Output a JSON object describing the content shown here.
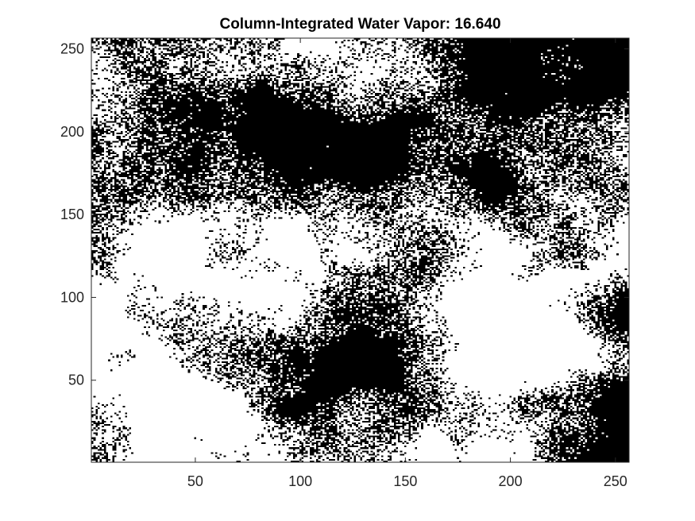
{
  "chart_data": {
    "type": "heatmap",
    "title": "Column-Integrated Water Vapor:  16.640",
    "xlabel": "",
    "ylabel": "",
    "xlim": [
      0.5,
      256.5
    ],
    "ylim": [
      0.5,
      256.5
    ],
    "grid_size": [
      256,
      256
    ],
    "colormap": [
      "#000000",
      "#ffffff"
    ],
    "x_ticks": [
      50,
      100,
      150,
      200,
      250
    ],
    "y_ticks": [
      50,
      100,
      150,
      200,
      250
    ],
    "x_tick_labels": [
      "50",
      "100",
      "150",
      "200",
      "250"
    ],
    "y_tick_labels": [
      "50",
      "100",
      "150",
      "200",
      "250"
    ],
    "grid": false,
    "y_direction": "normal"
  }
}
